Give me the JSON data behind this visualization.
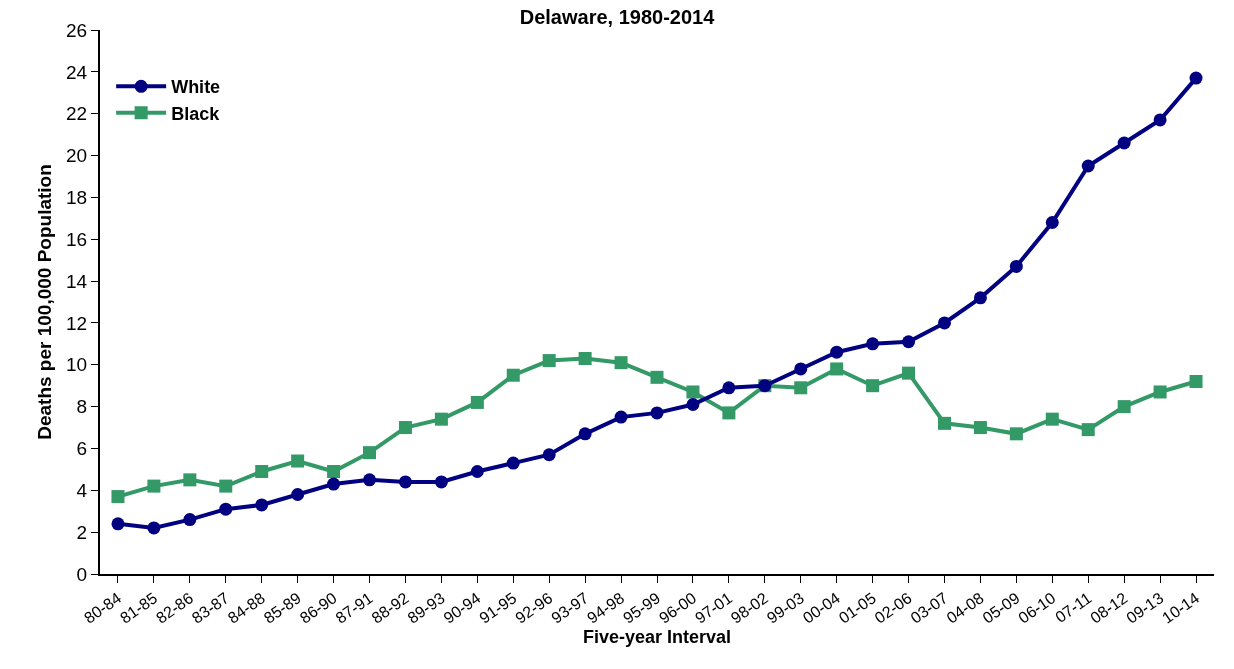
{
  "chart_data": {
    "type": "line",
    "title": "Delaware, 1980-2014",
    "xlabel": "Five-year Interval",
    "ylabel": "Deaths per 100,000 Population",
    "categories": [
      "80-84",
      "81-85",
      "82-86",
      "83-87",
      "84-88",
      "85-89",
      "86-90",
      "87-91",
      "88-92",
      "89-93",
      "90-94",
      "91-95",
      "92-96",
      "93-97",
      "94-98",
      "95-99",
      "96-00",
      "97-01",
      "98-02",
      "99-03",
      "00-04",
      "01-05",
      "02-06",
      "03-07",
      "04-08",
      "05-09",
      "06-10",
      "07-11",
      "08-12",
      "09-13",
      "10-14"
    ],
    "series": [
      {
        "name": "White",
        "color": "#000080",
        "marker": "circle",
        "values": [
          2.4,
          2.2,
          2.6,
          3.1,
          3.3,
          3.8,
          4.3,
          4.5,
          4.4,
          4.4,
          4.9,
          5.3,
          5.7,
          6.7,
          7.5,
          7.7,
          8.1,
          8.9,
          9.0,
          9.8,
          10.6,
          11.0,
          11.1,
          12.0,
          13.2,
          14.7,
          16.8,
          19.5,
          20.6,
          21.7,
          23.7
        ]
      },
      {
        "name": "Black",
        "color": "#339966",
        "marker": "square",
        "values": [
          3.7,
          4.2,
          4.5,
          4.2,
          4.9,
          5.4,
          4.9,
          5.8,
          7.0,
          7.4,
          8.2,
          9.5,
          10.2,
          10.3,
          10.1,
          9.4,
          8.7,
          7.7,
          9.0,
          8.9,
          9.8,
          9.0,
          9.6,
          7.2,
          7.0,
          6.7,
          7.4,
          6.9,
          8.0,
          8.7,
          9.2
        ]
      }
    ],
    "ylim": [
      0,
      26
    ],
    "yticks": [
      0,
      2,
      4,
      6,
      8,
      10,
      12,
      14,
      16,
      18,
      20,
      22,
      24,
      26
    ],
    "grid": false,
    "legend": "top left",
    "line_style": "solid"
  }
}
